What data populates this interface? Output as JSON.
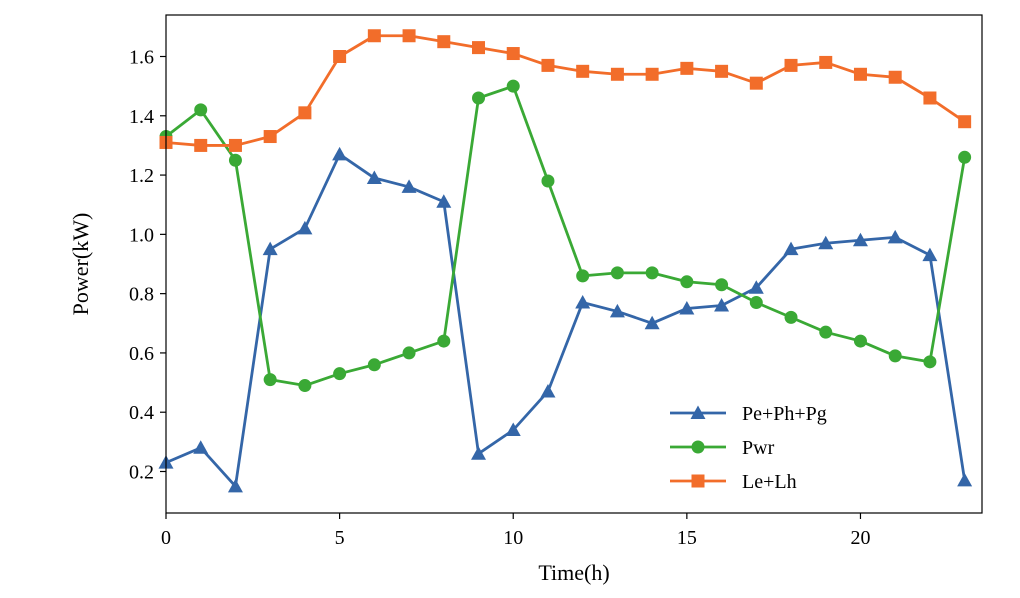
{
  "chart_data": {
    "type": "line",
    "title": "",
    "xlabel": "Time(h)",
    "ylabel": "Power(kW)",
    "xlim": [
      0,
      23.5
    ],
    "ylim": [
      0.06,
      1.74
    ],
    "x_ticks": [
      0,
      5,
      10,
      15,
      20
    ],
    "y_ticks": [
      0.2,
      0.4,
      0.6,
      0.8,
      1.0,
      1.2,
      1.4,
      1.6
    ],
    "y_tick_labels": [
      "0.2",
      "0.4",
      "0.6",
      "0.8",
      "1.0",
      "1.2",
      "1.4",
      "1.6"
    ],
    "grid": false,
    "legend_position": "lower-right",
    "x": [
      0,
      1,
      2,
      3,
      4,
      5,
      6,
      7,
      8,
      9,
      10,
      11,
      12,
      13,
      14,
      15,
      16,
      17,
      18,
      19,
      20,
      21,
      22,
      23
    ],
    "series": [
      {
        "name": "Pe+Ph+Pg",
        "color": "#3466a8",
        "marker": "triangle",
        "values": [
          0.23,
          0.28,
          0.15,
          0.95,
          1.02,
          1.27,
          1.19,
          1.16,
          1.11,
          0.26,
          0.34,
          0.47,
          0.77,
          0.74,
          0.7,
          0.75,
          0.76,
          0.82,
          0.95,
          0.97,
          0.98,
          0.99,
          0.93,
          0.17
        ]
      },
      {
        "name": "Pwr",
        "color": "#3aa935",
        "marker": "circle",
        "values": [
          1.33,
          1.42,
          1.25,
          0.51,
          0.49,
          0.53,
          0.56,
          0.6,
          0.64,
          1.46,
          1.5,
          1.18,
          0.86,
          0.87,
          0.87,
          0.84,
          0.83,
          0.77,
          0.72,
          0.67,
          0.64,
          0.59,
          0.57,
          1.26
        ]
      },
      {
        "name": "Le+Lh",
        "color": "#f26d2a",
        "marker": "square",
        "values": [
          1.31,
          1.3,
          1.3,
          1.33,
          1.41,
          1.6,
          1.67,
          1.67,
          1.65,
          1.63,
          1.61,
          1.57,
          1.55,
          1.54,
          1.54,
          1.56,
          1.55,
          1.51,
          1.57,
          1.58,
          1.54,
          1.53,
          1.46,
          1.38
        ]
      }
    ]
  }
}
